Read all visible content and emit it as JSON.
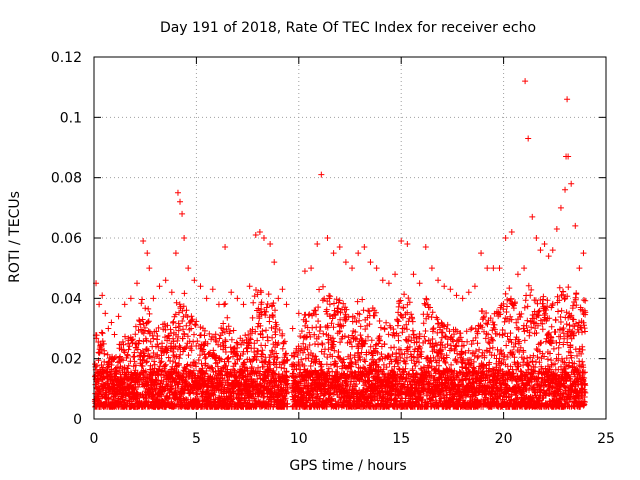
{
  "chart_data": {
    "type": "scatter",
    "title": "Day 191 of 2018, Rate Of TEC Index for receiver echo",
    "xlabel": "GPS time / hours",
    "ylabel": "ROTI / TECUs",
    "xlim": [
      0,
      25
    ],
    "ylim": [
      0,
      0.12
    ],
    "grid": true,
    "marker": "+",
    "x_ticks": [
      0,
      5,
      10,
      15,
      20,
      25
    ],
    "x_tick_labels": [
      "0",
      "5",
      "10",
      "15",
      "20",
      "25"
    ],
    "y_ticks": [
      0,
      0.02,
      0.04,
      0.06,
      0.08,
      0.1,
      0.12
    ],
    "y_tick_labels": [
      "0",
      "0.02",
      "0.04",
      "0.06",
      "0.08",
      "0.1",
      "0.12"
    ],
    "series": [
      {
        "name": "ROTI",
        "color": "#ff0000",
        "x": [
          0.1,
          0.25,
          0.4,
          0.55,
          0.7,
          0.85,
          1.0,
          1.2,
          1.5,
          1.8,
          2.1,
          2.4,
          2.6,
          2.7,
          2.9,
          3.2,
          3.5,
          3.8,
          4.0,
          4.1,
          4.2,
          4.3,
          4.4,
          4.6,
          4.9,
          5.2,
          5.5,
          5.8,
          6.1,
          6.4,
          6.7,
          7.0,
          7.3,
          7.6,
          7.9,
          8.1,
          8.3,
          8.6,
          8.8,
          9.0,
          9.2,
          9.4,
          9.7,
          10.0,
          10.3,
          10.6,
          10.9,
          11.1,
          11.4,
          11.7,
          12.0,
          12.3,
          12.6,
          12.9,
          13.2,
          13.5,
          13.8,
          14.1,
          14.4,
          14.7,
          15.0,
          15.3,
          15.6,
          15.9,
          16.2,
          16.5,
          16.8,
          17.1,
          17.4,
          17.7,
          18.0,
          18.3,
          18.6,
          18.9,
          19.2,
          19.5,
          19.8,
          20.1,
          20.4,
          20.7,
          21.0,
          21.05,
          21.2,
          21.4,
          21.6,
          21.8,
          22.0,
          22.2,
          22.4,
          22.6,
          22.8,
          23.0,
          23.05,
          23.1,
          23.15,
          23.3,
          23.5,
          23.7,
          23.9
        ],
        "y": [
          0.045,
          0.038,
          0.041,
          0.035,
          0.03,
          0.032,
          0.028,
          0.034,
          0.038,
          0.04,
          0.045,
          0.059,
          0.055,
          0.05,
          0.04,
          0.044,
          0.046,
          0.042,
          0.055,
          0.075,
          0.072,
          0.068,
          0.06,
          0.05,
          0.046,
          0.044,
          0.04,
          0.043,
          0.038,
          0.057,
          0.042,
          0.04,
          0.038,
          0.044,
          0.061,
          0.062,
          0.06,
          0.058,
          0.052,
          0.04,
          0.043,
          0.038,
          0.03,
          0.035,
          0.049,
          0.05,
          0.058,
          0.081,
          0.06,
          0.055,
          0.057,
          0.052,
          0.05,
          0.055,
          0.057,
          0.052,
          0.05,
          0.046,
          0.045,
          0.048,
          0.059,
          0.058,
          0.048,
          0.045,
          0.057,
          0.05,
          0.046,
          0.044,
          0.043,
          0.041,
          0.04,
          0.042,
          0.044,
          0.055,
          0.05,
          0.05,
          0.05,
          0.06,
          0.062,
          0.048,
          0.05,
          0.112,
          0.093,
          0.067,
          0.06,
          0.056,
          0.058,
          0.054,
          0.056,
          0.063,
          0.07,
          0.076,
          0.087,
          0.106,
          0.087,
          0.078,
          0.064,
          0.05,
          0.055
        ],
        "baseline_min": 0.004,
        "baseline_typical": 0.012
      }
    ]
  }
}
